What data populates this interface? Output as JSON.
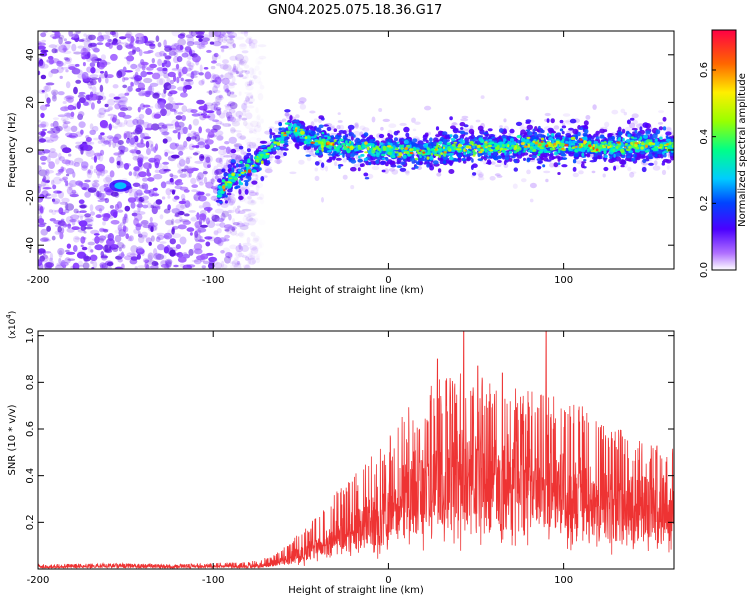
{
  "page_title": "GN04.2025.075.18.36.G17",
  "chart_data": [
    {
      "type": "heatmap",
      "title": "GN04.2025.075.18.36.G17",
      "xlabel": "Height of straight line (km)",
      "ylabel": "Frequency (Hz)",
      "xlim": [
        -200,
        163
      ],
      "ylim": [
        -50,
        50
      ],
      "xticks": [
        -200,
        -100,
        0,
        100
      ],
      "yticks": [
        -40,
        -20,
        0,
        20,
        40
      ],
      "colorbar": {
        "label": "Normalized spectral amplitude",
        "range": [
          0.0,
          0.72
        ],
        "ticks": [
          0.0,
          0.2,
          0.4,
          0.6
        ],
        "tick_labels": [
          "0.0",
          "0.2",
          "0.4",
          "0.6"
        ]
      },
      "features": {
        "noise_region_x": [
          -200,
          -72
        ],
        "noise_fade_x": [
          -100,
          -72
        ],
        "blob": {
          "x": -153,
          "y": -15
        },
        "ridge": [
          [
            -100,
            -20
          ],
          [
            -88,
            -12
          ],
          [
            -76,
            -5
          ],
          [
            -66,
            2
          ],
          [
            -58,
            7
          ],
          [
            -52,
            10
          ],
          [
            -48,
            5
          ],
          [
            -40,
            3
          ],
          [
            -20,
            1
          ],
          [
            0,
            0
          ],
          [
            20,
            -1
          ],
          [
            40,
            1
          ],
          [
            60,
            1
          ],
          [
            80,
            2
          ],
          [
            100,
            2
          ],
          [
            120,
            1
          ],
          [
            140,
            2
          ],
          [
            163,
            2
          ]
        ]
      }
    },
    {
      "type": "line",
      "xlabel": "Height of straight line (km)",
      "ylabel": "SNR (10 * v/v)",
      "y_scale_label": "(x10",
      "y_scale_exponent": "4",
      "y_scale_close": ")",
      "xlim": [
        -200,
        163
      ],
      "ylim": [
        0,
        1.02
      ],
      "xticks": [
        -200,
        -100,
        0,
        100
      ],
      "yticks": [
        0.2,
        0.4,
        0.6,
        0.8,
        1.0
      ],
      "ytick_labels": [
        "0.2",
        "0.4",
        "0.6",
        "0.8",
        "1.0"
      ],
      "series": [
        {
          "name": "SNR",
          "color": "#ee3333",
          "envelope": {
            "x": [
              -200,
              -160,
              -120,
              -80,
              -70,
              -60,
              -50,
              -40,
              -30,
              -20,
              -10,
              0,
              10,
              20,
              30,
              40,
              50,
              60,
              70,
              80,
              90,
              100,
              110,
              120,
              130,
              140,
              150,
              163
            ],
            "mean": [
              0.01,
              0.012,
              0.012,
              0.012,
              0.02,
              0.04,
              0.07,
              0.1,
              0.13,
              0.17,
              0.22,
              0.27,
              0.32,
              0.36,
              0.38,
              0.4,
              0.4,
              0.4,
              0.4,
              0.4,
              0.39,
              0.37,
              0.34,
              0.31,
              0.29,
              0.27,
              0.27,
              0.27
            ],
            "peak": [
              0.02,
              0.025,
              0.02,
              0.03,
              0.05,
              0.09,
              0.16,
              0.24,
              0.33,
              0.41,
              0.48,
              0.56,
              0.68,
              0.78,
              0.82,
              0.85,
              0.84,
              0.82,
              0.8,
              0.78,
              0.75,
              0.73,
              0.7,
              0.66,
              0.62,
              0.58,
              0.55,
              0.52
            ]
          },
          "spikes": [
            [
              43,
              1.02
            ],
            [
              90,
              1.02
            ],
            [
              28,
              0.9
            ],
            [
              51,
              0.87
            ],
            [
              65,
              0.84
            ]
          ]
        }
      ]
    }
  ]
}
